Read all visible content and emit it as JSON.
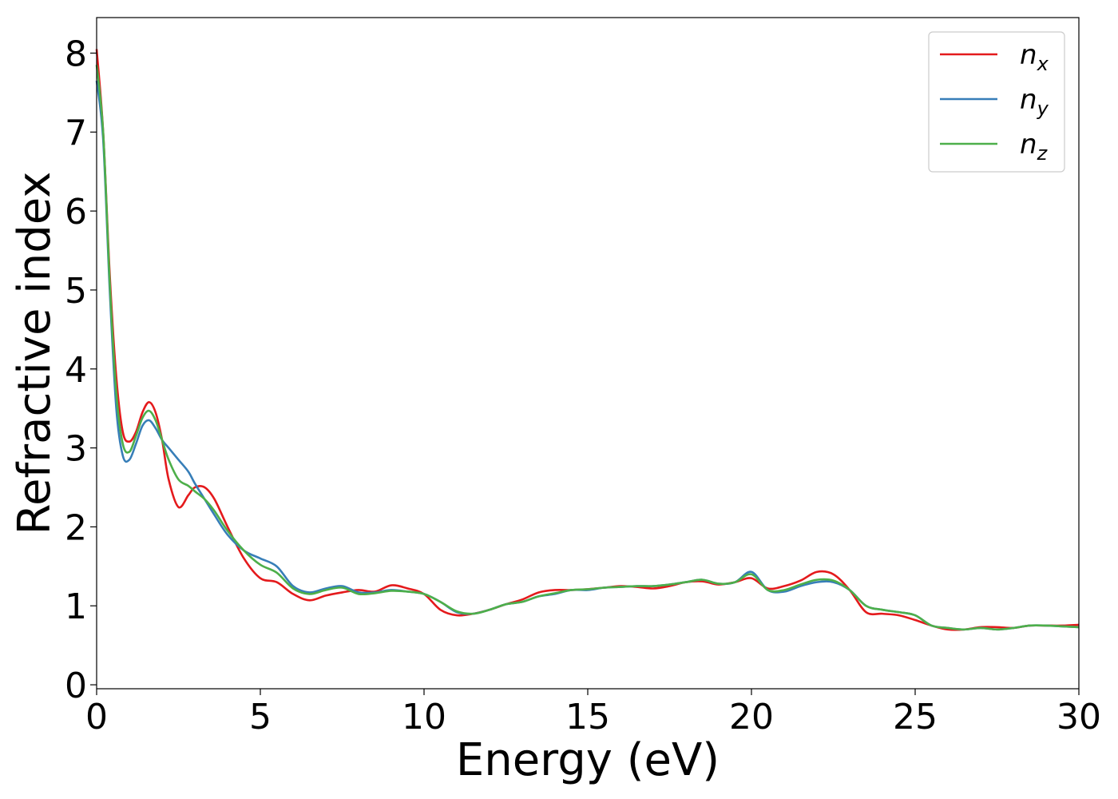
{
  "chart_data": {
    "type": "line",
    "title": "",
    "xlabel": "Energy (eV)",
    "ylabel": "Refractive index",
    "xlim": [
      0,
      30
    ],
    "ylim": [
      -0.05,
      8.45
    ],
    "xticks": [
      0,
      5,
      10,
      15,
      20,
      25,
      30
    ],
    "xtick_labels": [
      "0",
      "5",
      "10",
      "15",
      "20",
      "25",
      "30"
    ],
    "yticks": [
      0,
      1,
      2,
      3,
      4,
      5,
      6,
      7,
      8
    ],
    "ytick_labels": [
      "0",
      "1",
      "2",
      "3",
      "4",
      "5",
      "6",
      "7",
      "8"
    ],
    "grid": false,
    "legend_position": "top-right",
    "series": [
      {
        "name": "n",
        "subscript": "x",
        "color": "#e41a1c",
        "x": [
          0,
          0.2,
          0.4,
          0.6,
          0.8,
          1.0,
          1.2,
          1.4,
          1.6,
          1.8,
          2.0,
          2.2,
          2.5,
          2.8,
          3.0,
          3.3,
          3.6,
          4.0,
          4.5,
          5.0,
          5.5,
          6.0,
          6.5,
          7.0,
          7.5,
          8.0,
          8.5,
          9.0,
          9.5,
          10.0,
          10.5,
          11.0,
          11.5,
          12.0,
          12.5,
          13.0,
          13.5,
          14.0,
          14.5,
          15.0,
          15.5,
          16.0,
          16.5,
          17.0,
          17.5,
          18.0,
          18.5,
          19.0,
          19.5,
          20.0,
          20.5,
          21.0,
          21.5,
          22.0,
          22.5,
          23.0,
          23.5,
          24.0,
          24.5,
          25.0,
          25.5,
          26.0,
          26.5,
          27.0,
          27.5,
          28.0,
          28.5,
          29.0,
          29.5,
          30.0
        ],
        "y": [
          8.05,
          7.0,
          5.2,
          3.9,
          3.2,
          3.08,
          3.2,
          3.45,
          3.58,
          3.45,
          3.1,
          2.6,
          2.25,
          2.4,
          2.5,
          2.5,
          2.35,
          2.0,
          1.6,
          1.35,
          1.3,
          1.15,
          1.07,
          1.13,
          1.17,
          1.2,
          1.18,
          1.26,
          1.22,
          1.15,
          0.95,
          0.88,
          0.9,
          0.95,
          1.02,
          1.08,
          1.17,
          1.2,
          1.2,
          1.21,
          1.23,
          1.25,
          1.24,
          1.22,
          1.25,
          1.3,
          1.31,
          1.27,
          1.3,
          1.35,
          1.22,
          1.25,
          1.32,
          1.43,
          1.4,
          1.2,
          0.92,
          0.9,
          0.88,
          0.82,
          0.75,
          0.7,
          0.7,
          0.73,
          0.73,
          0.72,
          0.75,
          0.75,
          0.75,
          0.76
        ]
      },
      {
        "name": "n",
        "subscript": "y",
        "color": "#377eb8",
        "x": [
          0,
          0.2,
          0.4,
          0.6,
          0.8,
          1.0,
          1.2,
          1.4,
          1.6,
          1.8,
          2.0,
          2.2,
          2.5,
          2.8,
          3.0,
          3.3,
          3.6,
          4.0,
          4.5,
          5.0,
          5.5,
          6.0,
          6.5,
          7.0,
          7.5,
          8.0,
          8.5,
          9.0,
          9.5,
          10.0,
          10.5,
          11.0,
          11.5,
          12.0,
          12.5,
          13.0,
          13.5,
          14.0,
          14.5,
          15.0,
          15.5,
          16.0,
          16.5,
          17.0,
          17.5,
          18.0,
          18.5,
          19.0,
          19.5,
          20.0,
          20.5,
          21.0,
          21.5,
          22.0,
          22.5,
          23.0,
          23.5,
          24.0,
          24.5,
          25.0,
          25.5,
          26.0,
          26.5,
          27.0,
          27.5,
          28.0,
          28.5,
          29.0,
          29.5,
          30.0
        ],
        "y": [
          7.65,
          6.9,
          5.0,
          3.5,
          2.9,
          2.85,
          3.05,
          3.28,
          3.35,
          3.25,
          3.1,
          3.0,
          2.85,
          2.7,
          2.55,
          2.35,
          2.15,
          1.9,
          1.7,
          1.6,
          1.5,
          1.25,
          1.17,
          1.22,
          1.25,
          1.17,
          1.17,
          1.2,
          1.18,
          1.15,
          1.05,
          0.92,
          0.9,
          0.95,
          1.02,
          1.05,
          1.12,
          1.15,
          1.2,
          1.2,
          1.23,
          1.24,
          1.25,
          1.25,
          1.27,
          1.3,
          1.33,
          1.28,
          1.3,
          1.43,
          1.2,
          1.18,
          1.25,
          1.3,
          1.3,
          1.2,
          1.0,
          0.95,
          0.92,
          0.88,
          0.75,
          0.72,
          0.7,
          0.72,
          0.7,
          0.72,
          0.75,
          0.75,
          0.74,
          0.73
        ]
      },
      {
        "name": "n",
        "subscript": "z",
        "color": "#4daf4a",
        "x": [
          0,
          0.2,
          0.4,
          0.6,
          0.8,
          1.0,
          1.2,
          1.4,
          1.6,
          1.8,
          2.0,
          2.2,
          2.5,
          2.8,
          3.0,
          3.3,
          3.6,
          4.0,
          4.5,
          5.0,
          5.5,
          6.0,
          6.5,
          7.0,
          7.5,
          8.0,
          8.5,
          9.0,
          9.5,
          10.0,
          10.5,
          11.0,
          11.5,
          12.0,
          12.5,
          13.0,
          13.5,
          14.0,
          14.5,
          15.0,
          15.5,
          16.0,
          16.5,
          17.0,
          17.5,
          18.0,
          18.5,
          19.0,
          19.5,
          20.0,
          20.5,
          21.0,
          21.5,
          22.0,
          22.5,
          23.0,
          23.5,
          24.0,
          24.5,
          25.0,
          25.5,
          26.0,
          26.5,
          27.0,
          27.5,
          28.0,
          28.5,
          29.0,
          29.5,
          30.0
        ],
        "y": [
          7.85,
          7.0,
          5.1,
          3.7,
          3.05,
          2.95,
          3.15,
          3.38,
          3.47,
          3.35,
          3.1,
          2.85,
          2.6,
          2.52,
          2.45,
          2.35,
          2.2,
          1.95,
          1.7,
          1.52,
          1.42,
          1.22,
          1.15,
          1.2,
          1.23,
          1.15,
          1.16,
          1.19,
          1.18,
          1.15,
          1.05,
          0.93,
          0.9,
          0.95,
          1.02,
          1.05,
          1.12,
          1.16,
          1.2,
          1.21,
          1.23,
          1.24,
          1.25,
          1.25,
          1.27,
          1.3,
          1.33,
          1.28,
          1.3,
          1.4,
          1.2,
          1.2,
          1.27,
          1.33,
          1.32,
          1.2,
          1.0,
          0.95,
          0.92,
          0.88,
          0.75,
          0.72,
          0.7,
          0.72,
          0.7,
          0.72,
          0.75,
          0.75,
          0.74,
          0.73
        ]
      }
    ]
  }
}
